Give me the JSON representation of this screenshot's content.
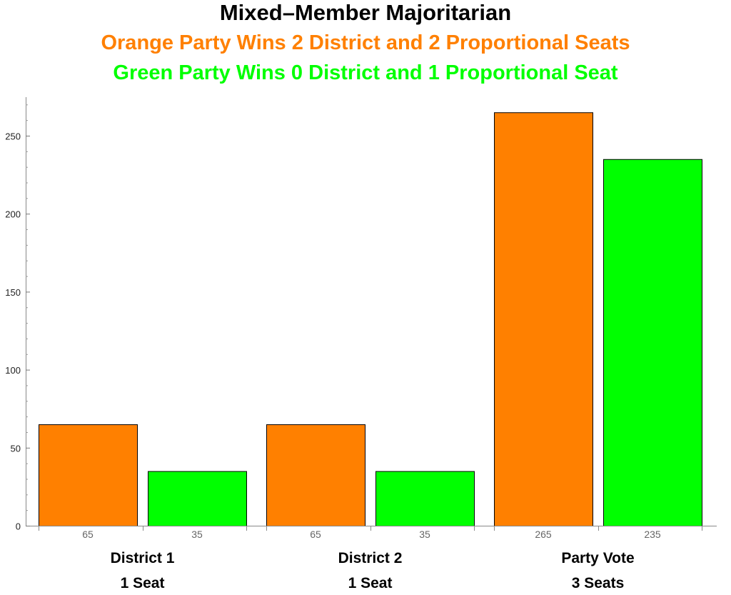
{
  "chart_data": {
    "type": "bar",
    "title": "Mixed–Member Majoritarian",
    "subtitles": [
      {
        "text": "Orange Party Wins 2 District and 2 Proportional Seats",
        "color": "#ff8000"
      },
      {
        "text": "Green Party Wins 0 District and 1 Proportional Seat",
        "color": "#00ff00"
      }
    ],
    "xlabel": "",
    "ylabel": "",
    "ylim": [
      0,
      275
    ],
    "yticks": [
      0,
      50,
      100,
      150,
      200,
      250
    ],
    "yminor_step": 10,
    "grid": false,
    "bar_edge_color": "#000000",
    "groups": [
      {
        "label_line1": "District 1",
        "label_line2": "1 Seat",
        "bars": [
          {
            "value": 65,
            "label": "65",
            "color": "#ff8000"
          },
          {
            "value": 35,
            "label": "35",
            "color": "#00ff00"
          }
        ]
      },
      {
        "label_line1": "District 2",
        "label_line2": "1 Seat",
        "bars": [
          {
            "value": 65,
            "label": "65",
            "color": "#ff8000"
          },
          {
            "value": 35,
            "label": "35",
            "color": "#00ff00"
          }
        ]
      },
      {
        "label_line1": "Party Vote",
        "label_line2": "3 Seats",
        "bars": [
          {
            "value": 265,
            "label": "265",
            "color": "#ff8000"
          },
          {
            "value": 235,
            "label": "235",
            "color": "#00ff00"
          }
        ]
      }
    ]
  }
}
